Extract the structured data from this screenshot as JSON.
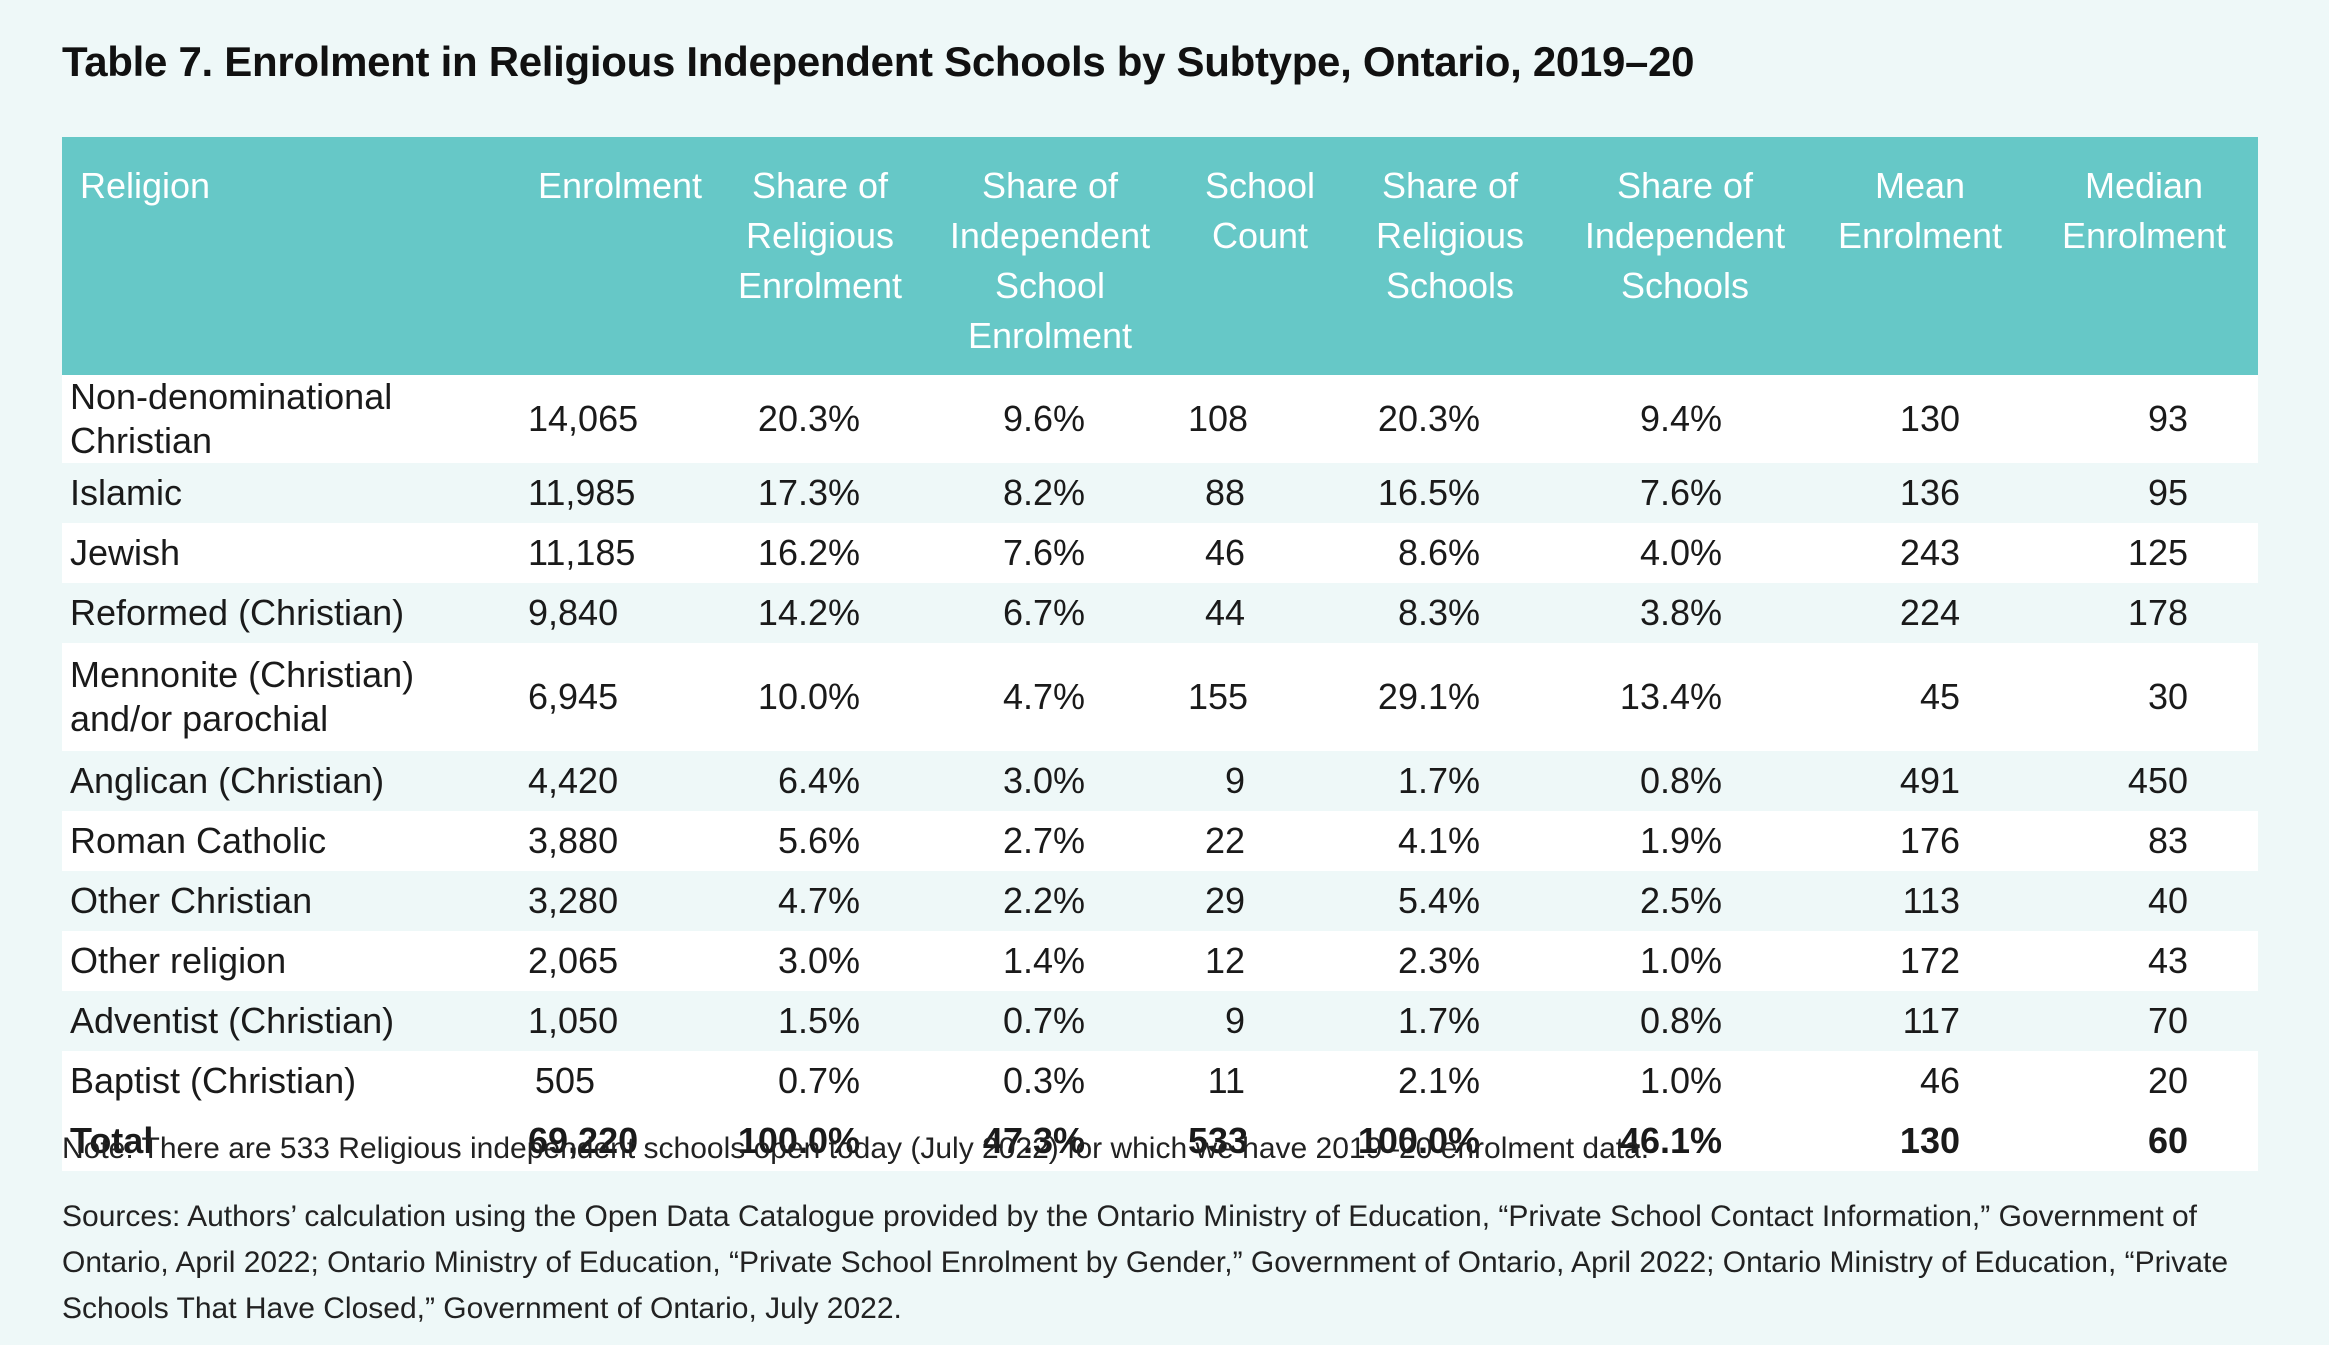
{
  "title": "Table 7. Enrolment in Religious Independent Schools by Subtype, Ontario, 2019–20",
  "headers": [
    "Religion",
    "Enrolment",
    "Share of\nReligious\nEnrolment",
    "Share of\nIndependent\nSchool Enrolment",
    "School\nCount",
    "Share of\nReligious\nSchools",
    "Share of\nIndependent\nSchools",
    "Mean\nEnrolment",
    "Median\nEnrolment"
  ],
  "rows": [
    [
      "Non-denominational Christian",
      "14,065",
      "20.3%",
      "9.6%",
      "108",
      "20.3%",
      "9.4%",
      "130",
      "93"
    ],
    [
      "Islamic",
      "11,985",
      "17.3%",
      "8.2%",
      "88",
      "16.5%",
      "7.6%",
      "136",
      "95"
    ],
    [
      "Jewish",
      "11,185",
      "16.2%",
      "7.6%",
      "46",
      "8.6%",
      "4.0%",
      "243",
      "125"
    ],
    [
      "Reformed (Christian)",
      "9,840",
      "14.2%",
      "6.7%",
      "44",
      "8.3%",
      "3.8%",
      "224",
      "178"
    ],
    [
      "Mennonite (Christian)\nand/or parochial",
      "6,945",
      "10.0%",
      "4.7%",
      "155",
      "29.1%",
      "13.4%",
      "45",
      "30"
    ],
    [
      "Anglican (Christian)",
      "4,420",
      "6.4%",
      "3.0%",
      "9",
      "1.7%",
      "0.8%",
      "491",
      "450"
    ],
    [
      "Roman Catholic",
      "3,880",
      "5.6%",
      "2.7%",
      "22",
      "4.1%",
      "1.9%",
      "176",
      "83"
    ],
    [
      "Other Christian",
      "3,280",
      "4.7%",
      "2.2%",
      "29",
      "5.4%",
      "2.5%",
      "113",
      "40"
    ],
    [
      "Other religion",
      "2,065",
      "3.0%",
      "1.4%",
      "12",
      "2.3%",
      "1.0%",
      "172",
      "43"
    ],
    [
      "Adventist (Christian)",
      "1,050",
      "1.5%",
      "0.7%",
      "9",
      "1.7%",
      "0.8%",
      "117",
      "70"
    ],
    [
      "Baptist (Christian)",
      "505",
      "0.7%",
      "0.3%",
      "11",
      "2.1%",
      "1.0%",
      "46",
      "20"
    ]
  ],
  "total": [
    "Total",
    "69,220",
    "100.0%",
    "47.3%",
    "533",
    "100.0%",
    "46.1%",
    "130",
    "60"
  ],
  "note": "Note: There are 533 Religious independent schools open today (July 2022) for which we have 2019–20 enrolment data.",
  "sources": "Sources: Authors’ calculation using the Open Data Catalogue provided by the Ontario Ministry of Education, “Private School Contact Information,” Government of Ontario, April 2022; Ontario Ministry of Education, “Private School Enrolment by Gender,” Government of Ontario, April 2022; Ontario Ministry of Education, “Private Schools That Have Closed,” Government of Ontario, July 2022.",
  "colors": {
    "header_bg": "#66c8c7",
    "page_bg": "#eef8f8",
    "row_alt": "#ffffff"
  }
}
